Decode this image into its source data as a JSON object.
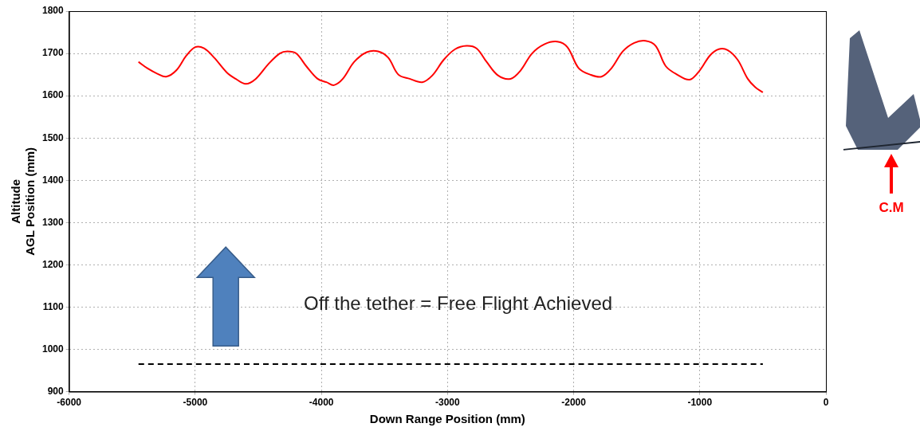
{
  "chart_data": {
    "type": "line",
    "x_label": "Down Range Position (mm)",
    "y_label": [
      "Altitude",
      "AGL Position (mm)"
    ],
    "annotations": [
      {
        "text": "Off the tether = Free Flight Achieved"
      },
      {
        "text": "C.M",
        "color": "#ff0000"
      }
    ],
    "series": [
      {
        "color": "#ff0000",
        "line_style": "solid",
        "x": [
          -5450,
          -5380,
          -5300,
          -5230,
          -5150,
          -5070,
          -5000,
          -4930,
          -4850,
          -4750,
          -4680,
          -4600,
          -4520,
          -4420,
          -4330,
          -4270,
          -4200,
          -4120,
          -4030,
          -3960,
          -3900,
          -3830,
          -3740,
          -3640,
          -3550,
          -3470,
          -3390,
          -3300,
          -3200,
          -3120,
          -3030,
          -2940,
          -2850,
          -2770,
          -2690,
          -2600,
          -2500,
          -2420,
          -2330,
          -2230,
          -2130,
          -2050,
          -1960,
          -1870,
          -1780,
          -1700,
          -1610,
          -1520,
          -1430,
          -1350,
          -1270,
          -1180,
          -1080,
          -1000,
          -920,
          -850,
          -780,
          -700,
          -620,
          -560,
          -500
        ],
        "values": [
          1680,
          1665,
          1652,
          1645,
          1660,
          1695,
          1715,
          1712,
          1690,
          1655,
          1640,
          1628,
          1640,
          1675,
          1700,
          1705,
          1700,
          1670,
          1640,
          1632,
          1625,
          1640,
          1680,
          1703,
          1705,
          1690,
          1650,
          1640,
          1632,
          1648,
          1685,
          1710,
          1718,
          1712,
          1680,
          1648,
          1640,
          1660,
          1700,
          1722,
          1728,
          1715,
          1665,
          1650,
          1645,
          1665,
          1705,
          1725,
          1730,
          1718,
          1670,
          1650,
          1638,
          1660,
          1695,
          1710,
          1708,
          1685,
          1640,
          1620,
          1608
        ]
      },
      {
        "color": "#000000",
        "line_style": "dashed",
        "x": [
          -5450,
          -500
        ],
        "values": [
          965,
          965
        ]
      }
    ],
    "xlim": [
      -6000,
      0
    ],
    "xticks": [
      -6000,
      -5000,
      -4000,
      -3000,
      -2000,
      -1000,
      0
    ],
    "ylim": [
      900,
      1800
    ],
    "yticks": [
      900,
      1000,
      1100,
      1200,
      1300,
      1400,
      1500,
      1600,
      1700,
      1800
    ],
    "grid": true
  }
}
